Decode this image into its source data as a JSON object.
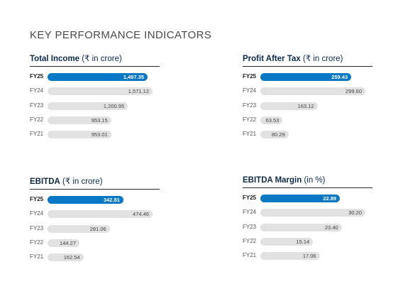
{
  "page": {
    "title": "KEY PERFORMANCE INDICATORS"
  },
  "chart_data": [
    {
      "type": "bar",
      "title_bold": "Total Income",
      "title_rest": " (₹ in crore)",
      "categories": [
        "FY25",
        "FY24",
        "FY23",
        "FY22",
        "FY21"
      ],
      "values": [
        1497.35,
        1571.12,
        1200.95,
        953.15,
        953.01
      ],
      "value_labels": [
        "1,497.35",
        "1,571.12",
        "1,200.95",
        "953.15",
        "953.01"
      ],
      "highlight": "FY25",
      "highlight_color": "#0878c4",
      "bar_color": "#e1e1e1"
    },
    {
      "type": "bar",
      "title_bold": "Profit After Tax",
      "title_rest": " (₹ in crore)",
      "categories": [
        "FY25",
        "FY24",
        "FY23",
        "FY22",
        "FY21"
      ],
      "values": [
        259.43,
        299.6,
        163.12,
        63.53,
        80.29
      ],
      "value_labels": [
        "259.43",
        "299.60",
        "163.12",
        "63.53",
        "80.29"
      ],
      "highlight": "FY25",
      "highlight_color": "#0878c4",
      "bar_color": "#e1e1e1"
    },
    {
      "type": "bar",
      "title_bold": "EBITDA",
      "title_rest": " (₹ in crore)",
      "categories": [
        "FY25",
        "FY24",
        "FY23",
        "FY22",
        "FY21"
      ],
      "values": [
        342.81,
        474.46,
        281.06,
        144.27,
        162.54
      ],
      "value_labels": [
        "342.81",
        "474.46",
        "281.06",
        "144.27",
        "162.54"
      ],
      "highlight": "FY25",
      "highlight_color": "#0878c4",
      "bar_color": "#e1e1e1"
    },
    {
      "type": "bar",
      "title_bold": "EBITDA Margin",
      "title_rest": " (in %)",
      "categories": [
        "FY25",
        "FY24",
        "FY23",
        "FY22",
        "FY21"
      ],
      "values": [
        22.89,
        30.2,
        23.4,
        15.14,
        17.06
      ],
      "value_labels": [
        "22.89",
        "30.20",
        "23.40",
        "15.14",
        "17.06"
      ],
      "highlight": "FY25",
      "highlight_color": "#0878c4",
      "bar_color": "#e1e1e1"
    }
  ]
}
